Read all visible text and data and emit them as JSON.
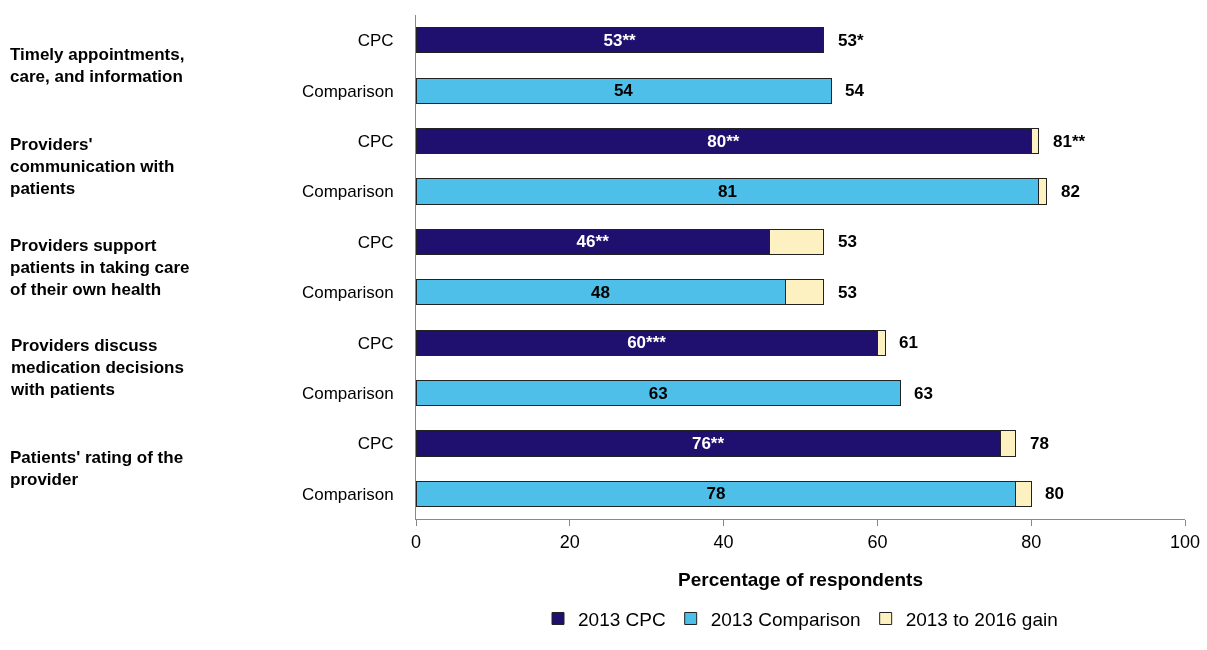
{
  "chart_data": {
    "type": "bar",
    "orientation": "horizontal",
    "stacked": true,
    "categories": [
      "CPC",
      "Comparison",
      "CPC",
      "Comparison",
      "CPC",
      "Comparison",
      "CPC",
      "Comparison",
      "CPC",
      "Comparison"
    ],
    "series": [
      {
        "name": "2013 CPC",
        "color": "#1f0f6e",
        "values": [
          53,
          null,
          80,
          null,
          46,
          null,
          60,
          null,
          76,
          null
        ],
        "value_labels": [
          "53**",
          null,
          "80**",
          null,
          "46**",
          null,
          "60***",
          null,
          "76**",
          null
        ]
      },
      {
        "name": "2013 Comparison",
        "color": "#4dbfe8",
        "values": [
          null,
          54,
          null,
          81,
          null,
          48,
          null,
          63,
          null,
          78
        ],
        "value_labels": [
          null,
          "54",
          null,
          "81",
          null,
          "48",
          null,
          "63",
          null,
          "78"
        ]
      },
      {
        "name": "2013 to 2016 gain",
        "color": "#fdf1c2",
        "values": [
          null,
          null,
          1,
          1,
          7,
          5,
          1,
          null,
          2,
          2
        ]
      }
    ],
    "totals": [
      "53*",
      "54",
      "81**",
      "82",
      "53",
      "53",
      "61",
      "63",
      "78",
      "80"
    ],
    "annotations": [
      "Timely appointments, care, and information",
      "Providers' communication with patients",
      "Providers support patients in taking care of their own health",
      "Providers discuss medication decisions with patients",
      "Patients' rating of the provider"
    ],
    "xlabel": "Percentage of respondents",
    "xlim": [
      0,
      100
    ],
    "xticks": [
      0,
      20,
      40,
      60,
      80,
      100
    ],
    "grid": false,
    "legend": "bottom"
  }
}
